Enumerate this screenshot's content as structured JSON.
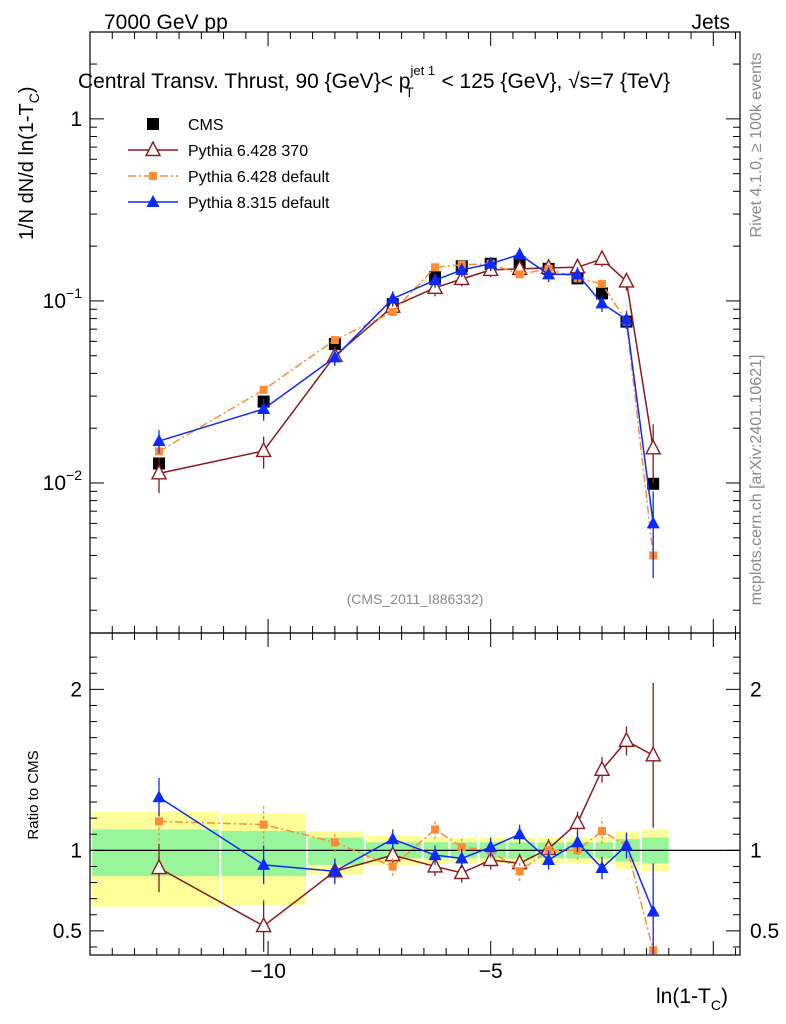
{
  "header": {
    "left": "7000 GeV pp",
    "right": "Jets"
  },
  "side_labels": {
    "rivet": "Rivet 4.1.0, ≥ 100k events",
    "mcplots": "mcplots.cern.ch [arXiv:2401.10621]"
  },
  "chart_data": [
    {
      "type": "scatter",
      "panel": "main",
      "title": {
        "part1": "Central Transv. Thrust, 90 {GeV}< p",
        "sup": "jet 1",
        "sub": "T",
        "part2": " < 125 {GeV}, √s=7 {TeV}"
      },
      "ylabel": {
        "main": "1/N    dN/d ln(1-T",
        "sub": "C",
        "close": ")"
      },
      "yscale": "log",
      "ylim": [
        0.0015,
        3.0
      ],
      "xlim": [
        -14.0,
        0.6
      ],
      "x_ticks": [
        -10,
        -5
      ],
      "y_ticks": [
        {
          "value": 1,
          "label": "1"
        },
        {
          "value": 0.1,
          "label": "10",
          "exp": "−1"
        },
        {
          "value": 0.01,
          "label": "10",
          "exp": "−2"
        }
      ],
      "watermark": "(CMS_2011_I886332)",
      "legend_position": "top-left",
      "x": [
        -12.45,
        -10.1,
        -8.5,
        -7.2,
        -6.25,
        -5.65,
        -5.0,
        -4.35,
        -3.7,
        -3.05,
        -2.5,
        -1.95,
        -1.35
      ],
      "series": [
        {
          "name": "CMS",
          "color": "#000000",
          "marker": "square",
          "line": "none",
          "values": [
            0.0128,
            0.028,
            0.058,
            0.096,
            0.135,
            0.155,
            0.16,
            0.163,
            0.15,
            0.133,
            0.11,
            0.077,
            0.0099
          ]
        },
        {
          "name": "Pythia 6.428 370",
          "color": "#8b1a1a",
          "marker": "open-triangle",
          "line": "solid",
          "values": [
            0.0113,
            0.015,
            0.05,
            0.093,
            0.118,
            0.132,
            0.148,
            0.15,
            0.152,
            0.153,
            0.17,
            0.128,
            0.0155
          ],
          "errors": [
            0.0025,
            0.003,
            0.006,
            0.01,
            0.012,
            0.012,
            0.013,
            0.014,
            0.014,
            0.014,
            0.016,
            0.014,
            0.0055
          ]
        },
        {
          "name": "Pythia 6.428 default",
          "color": "#ff8c32",
          "marker": "small-square",
          "line": "dashdot",
          "values": [
            0.0149,
            0.0325,
            0.061,
            0.087,
            0.153,
            0.158,
            0.16,
            0.14,
            0.15,
            0.133,
            0.124,
            0.077,
            0.004
          ]
        },
        {
          "name": "Pythia 8.315 default",
          "color": "#0a2aff",
          "marker": "triangle",
          "line": "solid",
          "values": [
            0.017,
            0.0255,
            0.049,
            0.103,
            0.13,
            0.148,
            0.16,
            0.18,
            0.14,
            0.14,
            0.097,
            0.079,
            0.006
          ],
          "errors": [
            0.0025,
            0.0035,
            0.005,
            0.01,
            0.012,
            0.013,
            0.014,
            0.016,
            0.013,
            0.013,
            0.01,
            0.009,
            0.003
          ]
        }
      ]
    },
    {
      "type": "scatter",
      "panel": "ratio",
      "ylabel": "Ratio to CMS",
      "xlabel": {
        "main": "ln(1-T",
        "sub": "C",
        "close": ")"
      },
      "ylim": [
        0.35,
        2.35
      ],
      "xlim": [
        -14.0,
        0.6
      ],
      "x_ticks": [
        {
          "value": -10,
          "label": "−10"
        },
        {
          "value": -5,
          "label": "−5"
        }
      ],
      "y_ticks": [
        {
          "value": 2,
          "label": "2"
        },
        {
          "value": 1,
          "label": "1"
        },
        {
          "value": 0.5,
          "label": "0.5"
        }
      ],
      "bands": {
        "x_edges": [
          -14.0,
          -11.1,
          -9.15,
          -7.85,
          -6.55,
          -5.95,
          -5.3,
          -4.65,
          -4.0,
          -3.35,
          -2.7,
          -2.25,
          -1.65,
          -1.0
        ],
        "green": [
          [
            0.84,
            1.13
          ],
          [
            0.84,
            1.12
          ],
          [
            0.91,
            1.08
          ],
          [
            0.95,
            1.05
          ],
          [
            0.95,
            1.05
          ],
          [
            0.95,
            1.05
          ],
          [
            0.95,
            1.05
          ],
          [
            0.95,
            1.05
          ],
          [
            0.95,
            1.05
          ],
          [
            0.95,
            1.05
          ],
          [
            0.95,
            1.05
          ],
          [
            0.93,
            1.07
          ],
          [
            0.92,
            1.08
          ]
        ],
        "yellow": [
          [
            0.65,
            1.24
          ],
          [
            0.66,
            1.23
          ],
          [
            0.85,
            1.12
          ],
          [
            0.91,
            1.09
          ],
          [
            0.92,
            1.08
          ],
          [
            0.92,
            1.08
          ],
          [
            0.92,
            1.08
          ],
          [
            0.92,
            1.08
          ],
          [
            0.92,
            1.08
          ],
          [
            0.92,
            1.08
          ],
          [
            0.92,
            1.08
          ],
          [
            0.88,
            1.12
          ],
          [
            0.87,
            1.13
          ]
        ]
      },
      "x": [
        -12.45,
        -10.1,
        -8.5,
        -7.2,
        -6.25,
        -5.65,
        -5.0,
        -4.35,
        -3.7,
        -3.05,
        -2.5,
        -1.95,
        -1.35
      ],
      "series": [
        {
          "name": "Pythia 6.428 370",
          "color": "#8b1a1a",
          "marker": "open-triangle",
          "line": "solid",
          "values": [
            0.89,
            0.53,
            0.87,
            0.97,
            0.9,
            0.86,
            0.94,
            0.92,
            1.01,
            1.17,
            1.5,
            1.68,
            1.59
          ],
          "errors": [
            0.15,
            0.16,
            0.08,
            0.06,
            0.06,
            0.06,
            0.06,
            0.06,
            0.06,
            0.07,
            0.08,
            0.09,
            0.45
          ]
        },
        {
          "name": "Pythia 6.428 default",
          "color": "#ff8c32",
          "marker": "small-square",
          "line": "dashdot",
          "values": [
            1.18,
            1.16,
            1.05,
            0.9,
            1.13,
            1.02,
            1.0,
            0.87,
            1.0,
            1.0,
            1.12,
            1.03,
            0.38
          ],
          "errors": [
            0.12,
            0.12,
            0.06,
            0.06,
            0.06,
            0.06,
            0.05,
            0.06,
            0.05,
            0.06,
            0.08,
            0.07,
            0.2
          ]
        },
        {
          "name": "Pythia 8.315 default",
          "color": "#0a2aff",
          "marker": "triangle",
          "line": "solid",
          "values": [
            1.33,
            0.91,
            0.87,
            1.07,
            0.97,
            0.95,
            1.02,
            1.1,
            0.94,
            1.05,
            0.89,
            1.03,
            0.62
          ],
          "errors": [
            0.12,
            0.12,
            0.07,
            0.06,
            0.06,
            0.06,
            0.06,
            0.06,
            0.06,
            0.06,
            0.07,
            0.08,
            0.3
          ]
        }
      ]
    }
  ]
}
